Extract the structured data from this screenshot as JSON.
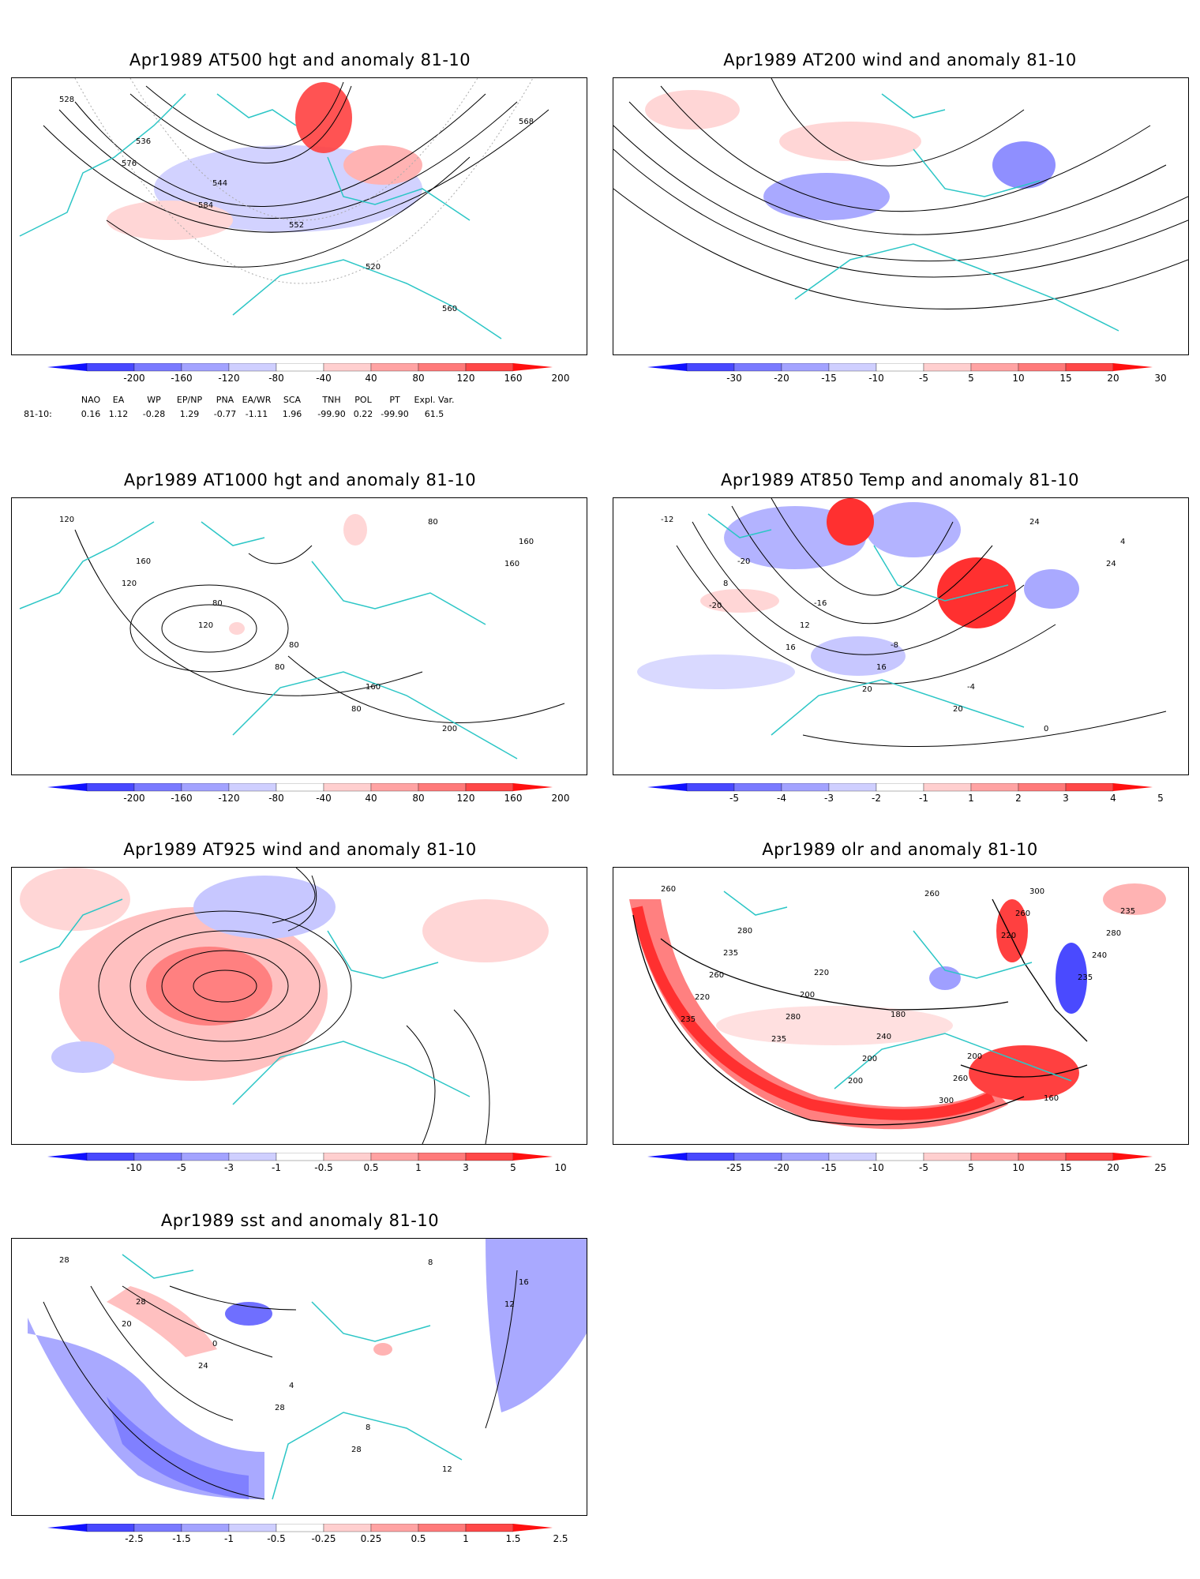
{
  "panels": [
    {
      "id": "p1",
      "title": "Apr1989 AT500 hgt and anomaly 81-10",
      "contour_labels": [
        "528",
        "536",
        "544",
        "552",
        "520",
        "560",
        "568",
        "576",
        "584"
      ],
      "colorbar_ticks": [
        "-200",
        "-160",
        "-120",
        "-80",
        "-40",
        "40",
        "80",
        "120",
        "160",
        "200"
      ]
    },
    {
      "id": "p2",
      "title": "Apr1989 AT200 wind and anomaly 81-10",
      "contour_labels": [],
      "colorbar_ticks": [
        "-30",
        "-20",
        "-15",
        "-10",
        "-5",
        "5",
        "10",
        "15",
        "20",
        "30"
      ]
    },
    {
      "id": "p3",
      "title": "Apr1989 AT1000 hgt and anomaly 81-10",
      "contour_labels": [
        "120",
        "160",
        "80",
        "80",
        "160",
        "200",
        "160",
        "120",
        "120",
        "80",
        "80",
        "80",
        "160"
      ],
      "colorbar_ticks": [
        "-200",
        "-160",
        "-120",
        "-80",
        "-40",
        "40",
        "80",
        "120",
        "160",
        "200"
      ]
    },
    {
      "id": "p4",
      "title": "Apr1989 AT850 Temp and anomaly 81-10",
      "contour_labels": [
        "-12",
        "-20",
        "-16",
        "-8",
        "-4",
        "0",
        "4",
        "8",
        "12",
        "16",
        "20",
        "24",
        "24",
        "-20",
        "16",
        "20"
      ],
      "colorbar_ticks": [
        "-5",
        "-4",
        "-3",
        "-2",
        "-1",
        "1",
        "2",
        "3",
        "4",
        "5"
      ]
    },
    {
      "id": "p5",
      "title": "Apr1989 AT925 wind and anomaly 81-10",
      "contour_labels": [],
      "colorbar_ticks": [
        "-10",
        "-5",
        "-3",
        "-1",
        "-0.5",
        "0.5",
        "1",
        "3",
        "5",
        "10"
      ]
    },
    {
      "id": "p6",
      "title": "Apr1989 olr and anomaly 81-10",
      "contour_labels": [
        "260",
        "280",
        "220",
        "180",
        "200",
        "160",
        "235",
        "235",
        "200",
        "240",
        "260",
        "300",
        "280",
        "260",
        "280",
        "200",
        "300",
        "260",
        "240",
        "220",
        "235",
        "200",
        "260",
        "220",
        "235",
        "235"
      ],
      "colorbar_ticks": [
        "-25",
        "-20",
        "-15",
        "-10",
        "-5",
        "5",
        "10",
        "15",
        "20",
        "25"
      ]
    },
    {
      "id": "p7",
      "title": "Apr1989 sst and anomaly 81-10",
      "contour_labels": [
        "28",
        "28",
        "0",
        "4",
        "8",
        "12",
        "16",
        "20",
        "24",
        "28",
        "28",
        "8",
        "12"
      ],
      "colorbar_ticks": [
        "-2.5",
        "-1.5",
        "-1",
        "-0.5",
        "-0.25",
        "0.25",
        "0.5",
        "1",
        "1.5",
        "2.5"
      ]
    }
  ],
  "indices": {
    "headers": [
      "NAO",
      "EA",
      "WP",
      "EP/NP",
      "PNA",
      "EA/WR",
      "SCA",
      "TNH",
      "POL",
      "PT",
      "Expl. Var."
    ],
    "row_label": "81-10:",
    "values": [
      "0.16",
      "1.12",
      "-0.28",
      "1.29",
      "-0.77",
      "-1.11",
      "1.96",
      "-99.90",
      "0.22",
      "-99.90",
      "61.5"
    ]
  },
  "colors": {
    "coast": "#2cc6c6",
    "blue_dark": "#2222ff",
    "red_dark": "#ff1111"
  }
}
